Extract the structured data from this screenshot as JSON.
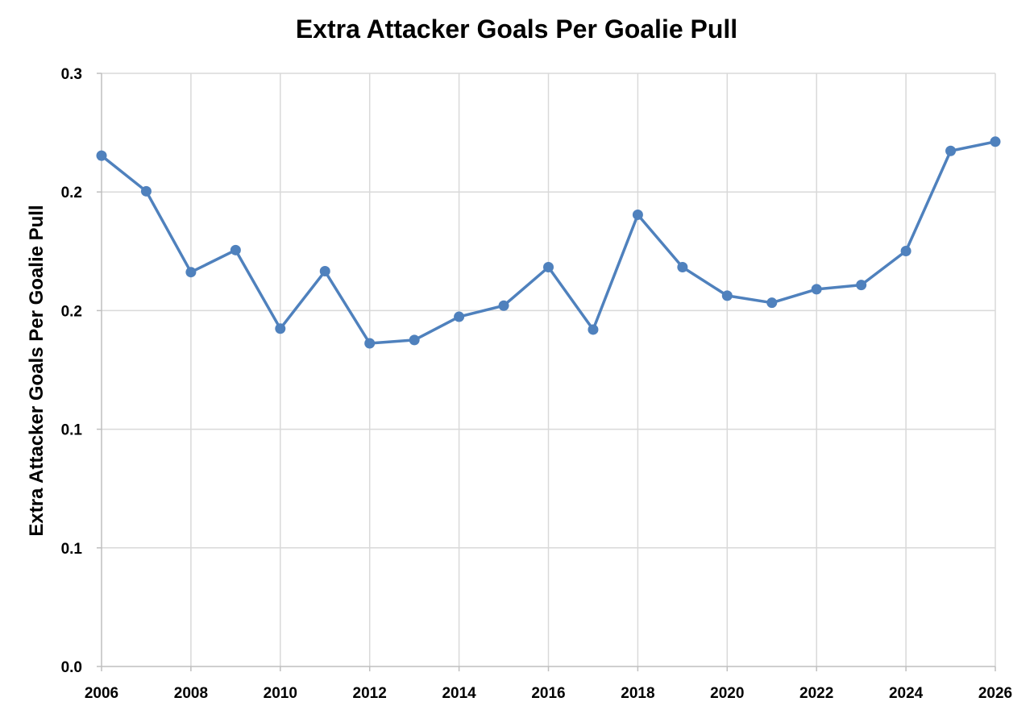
{
  "chart_data": {
    "type": "line",
    "title": "Extra Attacker Goals Per Goalie Pull",
    "xlabel": "",
    "ylabel": "Extra Attacker Goals Per Goalie Pull",
    "xlim": [
      2006,
      2026
    ],
    "ylim": [
      0,
      0.25
    ],
    "x_ticks": [
      2006,
      2008,
      2010,
      2012,
      2014,
      2016,
      2018,
      2020,
      2022,
      2024,
      2026
    ],
    "x_tick_labels": [
      "2006",
      "2008",
      "2010",
      "2012",
      "2014",
      "2016",
      "2018",
      "2020",
      "2022",
      "2024",
      "2026"
    ],
    "y_ticks": [
      0,
      0.05,
      0.1,
      0.15,
      0.2,
      0.25
    ],
    "y_tick_labels": [
      "0.0",
      "0.1",
      "0.1",
      "0.2",
      "0.2",
      "0.3"
    ],
    "grid": true,
    "legend": "none",
    "color": "#4f81bd",
    "series": [
      {
        "x": [
          2006,
          2007,
          2008,
          2009,
          2010,
          2011,
          2012,
          2013,
          2014,
          2015,
          2016,
          2017,
          2018,
          2019,
          2020,
          2021,
          2022,
          2023,
          2024,
          2025,
          2026
        ],
        "values": [
          0.2153,
          0.2003,
          0.1662,
          0.1755,
          0.1424,
          0.1666,
          0.1362,
          0.1376,
          0.1474,
          0.1521,
          0.1683,
          0.142,
          0.1904,
          0.1683,
          0.1563,
          0.1533,
          0.159,
          0.1608,
          0.1751,
          0.2173,
          0.2212
        ]
      }
    ]
  }
}
